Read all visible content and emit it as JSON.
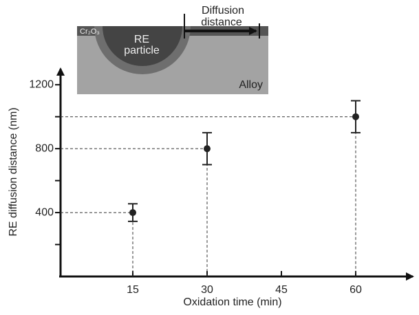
{
  "chart_data": {
    "type": "scatter",
    "x_label": "Oxidation time (min)",
    "y_label": "RE diffusion distance (nm)",
    "x": [
      15,
      30,
      60
    ],
    "values": [
      400,
      800,
      1000
    ],
    "errors": [
      55,
      100,
      100
    ],
    "color": "#222222",
    "xlim": [
      0,
      70
    ],
    "xticks": [
      15,
      30,
      45,
      60
    ],
    "ylim": [
      0,
      1300
    ],
    "yticks": [
      400,
      800,
      1200
    ],
    "yminor_ticks": [
      200,
      600,
      1000
    ],
    "guide_lines": true
  },
  "inset": {
    "oxide": "Cr₂O₃",
    "particle_line1": "RE",
    "particle_line2": "particle",
    "arrow_line1": "Diffusion",
    "arrow_line2": "distance",
    "alloy": "Alloy"
  }
}
